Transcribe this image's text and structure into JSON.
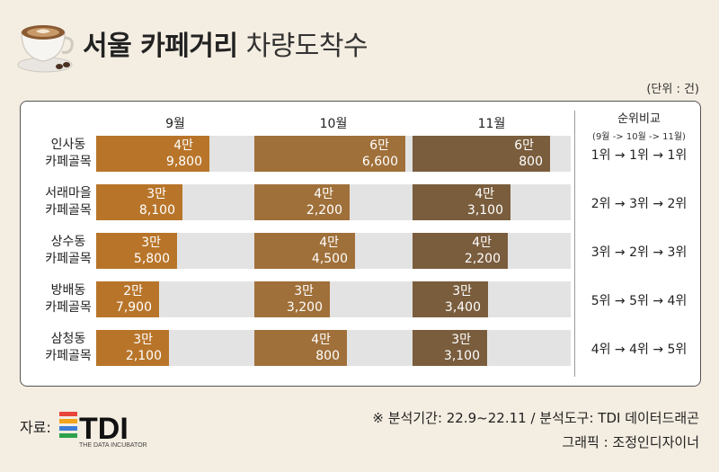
{
  "header": {
    "title_bold": "서울 카페거리",
    "title_light": "차량도착수",
    "unit": "(단위 : 건)"
  },
  "rank_header": {
    "title": "순위비교",
    "subtitle": "(9월 -> 10월 -> 11월)"
  },
  "colors": {
    "bg": "#f4ede1",
    "sep": "#b8752a",
    "oct": "#a0703a",
    "nov": "#7a5d3d",
    "track": "#e3e3e3"
  },
  "chart_data": {
    "type": "bar",
    "months": [
      "9월",
      "10월",
      "11월"
    ],
    "scale_max": 69800,
    "series": [
      {
        "label": [
          "인사동",
          "카페골목"
        ],
        "values": [
          49800,
          66600,
          60800
        ],
        "texts": [
          [
            "4만",
            "9,800"
          ],
          [
            "6만",
            "6,600"
          ],
          [
            "6만",
            "800"
          ]
        ],
        "ranking": "1위 → 1위 → 1위"
      },
      {
        "label": [
          "서래마을",
          "카페골목"
        ],
        "values": [
          38100,
          42200,
          43100
        ],
        "texts": [
          [
            "3만",
            "8,100"
          ],
          [
            "4만",
            "2,200"
          ],
          [
            "4만",
            "3,100"
          ]
        ],
        "ranking": "2위 → 3위 → 2위"
      },
      {
        "label": [
          "상수동",
          "카페골목"
        ],
        "values": [
          35800,
          44500,
          42200
        ],
        "texts": [
          [
            "3만",
            "5,800"
          ],
          [
            "4만",
            "4,500"
          ],
          [
            "4만",
            "2,200"
          ]
        ],
        "ranking": "3위 → 2위 → 3위"
      },
      {
        "label": [
          "방배동",
          "카페골목"
        ],
        "values": [
          27900,
          33200,
          33400
        ],
        "texts": [
          [
            "2만",
            "7,900"
          ],
          [
            "3만",
            "3,200"
          ],
          [
            "3만",
            "3,400"
          ]
        ],
        "ranking": "5위 → 5위 → 4위"
      },
      {
        "label": [
          "삼청동",
          "카페골목"
        ],
        "values": [
          32100,
          40800,
          33100
        ],
        "texts": [
          [
            "3만",
            "2,100"
          ],
          [
            "4만",
            "800"
          ],
          [
            "3만",
            "3,100"
          ]
        ],
        "ranking": "4위 → 4위 → 5위"
      }
    ]
  },
  "footer": {
    "source_label": "자료:",
    "logo_text": "TDI",
    "logo_subtext": "THE DATA INCUBATOR",
    "note_line1": "※ 분석기간:  22.9~22.11  / 분석도구: TDI 데이터드래곤",
    "note_line2": "그래픽 : 조정인디자이너"
  }
}
